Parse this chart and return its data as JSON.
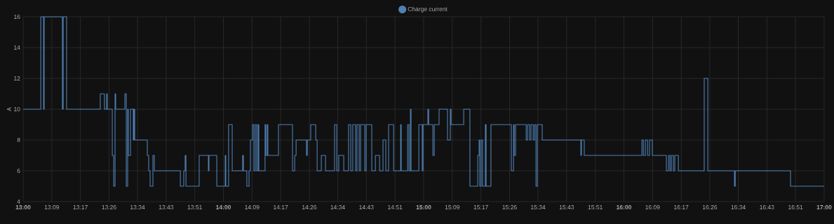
{
  "chart_data": {
    "type": "step",
    "ylabel": "A",
    "legend": "top",
    "grid": true,
    "marker": "none",
    "line_style": "solid",
    "xlim": [
      13,
      17
    ],
    "ylim": [
      4,
      16
    ],
    "yticks": [
      4,
      6,
      8,
      10,
      12,
      14,
      16
    ],
    "xticks": [
      {
        "value": 13,
        "label": "13:00"
      },
      {
        "value": 13.143,
        "label": "13:09"
      },
      {
        "value": 13.286,
        "label": "13:17"
      },
      {
        "value": 13.429,
        "label": "13:26"
      },
      {
        "value": 13.571,
        "label": "13:34"
      },
      {
        "value": 13.714,
        "label": "13:43"
      },
      {
        "value": 13.857,
        "label": "13:51"
      },
      {
        "value": 14,
        "label": "14:00"
      },
      {
        "value": 14.143,
        "label": "14:09"
      },
      {
        "value": 14.286,
        "label": "14:17"
      },
      {
        "value": 14.429,
        "label": "14:26"
      },
      {
        "value": 14.571,
        "label": "14:34"
      },
      {
        "value": 14.714,
        "label": "14:43"
      },
      {
        "value": 14.857,
        "label": "14:51"
      },
      {
        "value": 15,
        "label": "15:00"
      },
      {
        "value": 15.143,
        "label": "15:09"
      },
      {
        "value": 15.286,
        "label": "15:17"
      },
      {
        "value": 15.429,
        "label": "15:26"
      },
      {
        "value": 15.571,
        "label": "15:34"
      },
      {
        "value": 15.714,
        "label": "15:43"
      },
      {
        "value": 15.857,
        "label": "15:51"
      },
      {
        "value": 16,
        "label": "16:00"
      },
      {
        "value": 16.143,
        "label": "16:09"
      },
      {
        "value": 16.286,
        "label": "16:17"
      },
      {
        "value": 16.429,
        "label": "16:26"
      },
      {
        "value": 16.571,
        "label": "16:34"
      },
      {
        "value": 16.714,
        "label": "16:43"
      },
      {
        "value": 16.857,
        "label": "16:51"
      },
      {
        "value": 17,
        "label": "17:00"
      }
    ],
    "series": [
      {
        "name": "Charge current",
        "color": "#4f7fb3",
        "x": [
          13.0,
          13.088,
          13.102,
          13.105,
          13.196,
          13.2,
          13.217,
          13.385,
          13.406,
          13.417,
          13.42,
          13.445,
          13.452,
          13.459,
          13.462,
          13.508,
          13.515,
          13.522,
          13.525,
          13.536,
          13.55,
          13.553,
          13.557,
          13.62,
          13.627,
          13.634,
          13.648,
          13.655,
          13.785,
          13.802,
          13.809,
          13.813,
          13.879,
          13.925,
          13.928,
          13.967,
          14.009,
          14.012,
          14.026,
          14.044,
          14.096,
          14.1,
          14.117,
          14.128,
          14.135,
          14.145,
          14.152,
          14.159,
          14.166,
          14.173,
          14.177,
          14.208,
          14.212,
          14.219,
          14.222,
          14.275,
          14.345,
          14.356,
          14.363,
          14.415,
          14.419,
          14.436,
          14.461,
          14.468,
          14.489,
          14.51,
          14.555,
          14.566,
          14.576,
          14.601,
          14.625,
          14.636,
          14.646,
          14.66,
          14.667,
          14.678,
          14.685,
          14.706,
          14.713,
          14.741,
          14.759,
          14.78,
          14.797,
          14.811,
          14.825,
          14.85,
          14.885,
          14.888,
          14.92,
          14.927,
          14.934,
          14.937,
          14.976,
          14.993,
          14.997,
          15.021,
          15.025,
          15.046,
          15.053,
          15.077,
          15.119,
          15.133,
          15.137,
          15.2,
          15.231,
          15.27,
          15.277,
          15.28,
          15.287,
          15.294,
          15.308,
          15.312,
          15.336,
          15.438,
          15.449,
          15.452,
          15.459,
          15.512,
          15.519,
          15.529,
          15.536,
          15.547,
          15.554,
          15.561,
          15.568,
          15.592,
          15.785,
          15.788,
          15.802,
          16.09,
          16.097,
          16.107,
          16.118,
          16.128,
          16.142,
          16.212,
          16.223,
          16.23,
          16.237,
          16.247,
          16.254,
          16.272,
          16.401,
          16.419,
          16.552,
          16.556,
          16.832,
          17.0
        ],
        "values": [
          10,
          16,
          10,
          16,
          10,
          16,
          10,
          11,
          10,
          11,
          10,
          7,
          5,
          11,
          10,
          11,
          5,
          10,
          7,
          10,
          8,
          10,
          8,
          7,
          6,
          5,
          7,
          6,
          5,
          6,
          7,
          5,
          7,
          6,
          7,
          5,
          7,
          5,
          9,
          6,
          7,
          6,
          5,
          6,
          8,
          9,
          6,
          9,
          6,
          9,
          6,
          9,
          7,
          9,
          7,
          9,
          6,
          7,
          8,
          7,
          8,
          9,
          8,
          6,
          7,
          6,
          9,
          6,
          7,
          6,
          9,
          6,
          9,
          6,
          9,
          6,
          9,
          6,
          9,
          6,
          7,
          6,
          8,
          6,
          9,
          6,
          9,
          6,
          9,
          6,
          10,
          6,
          9,
          6,
          9,
          10,
          9,
          7,
          9,
          10,
          8,
          10,
          9,
          10,
          5,
          7,
          8,
          5,
          8,
          5,
          9,
          5,
          9,
          6,
          9,
          7,
          9,
          8,
          9,
          8,
          9,
          8,
          9,
          5,
          9,
          8,
          7,
          8,
          7,
          8,
          7,
          8,
          7,
          8,
          7,
          6,
          7,
          6,
          7,
          6,
          7,
          6,
          12,
          6,
          5,
          6,
          5,
          5
        ]
      }
    ]
  }
}
